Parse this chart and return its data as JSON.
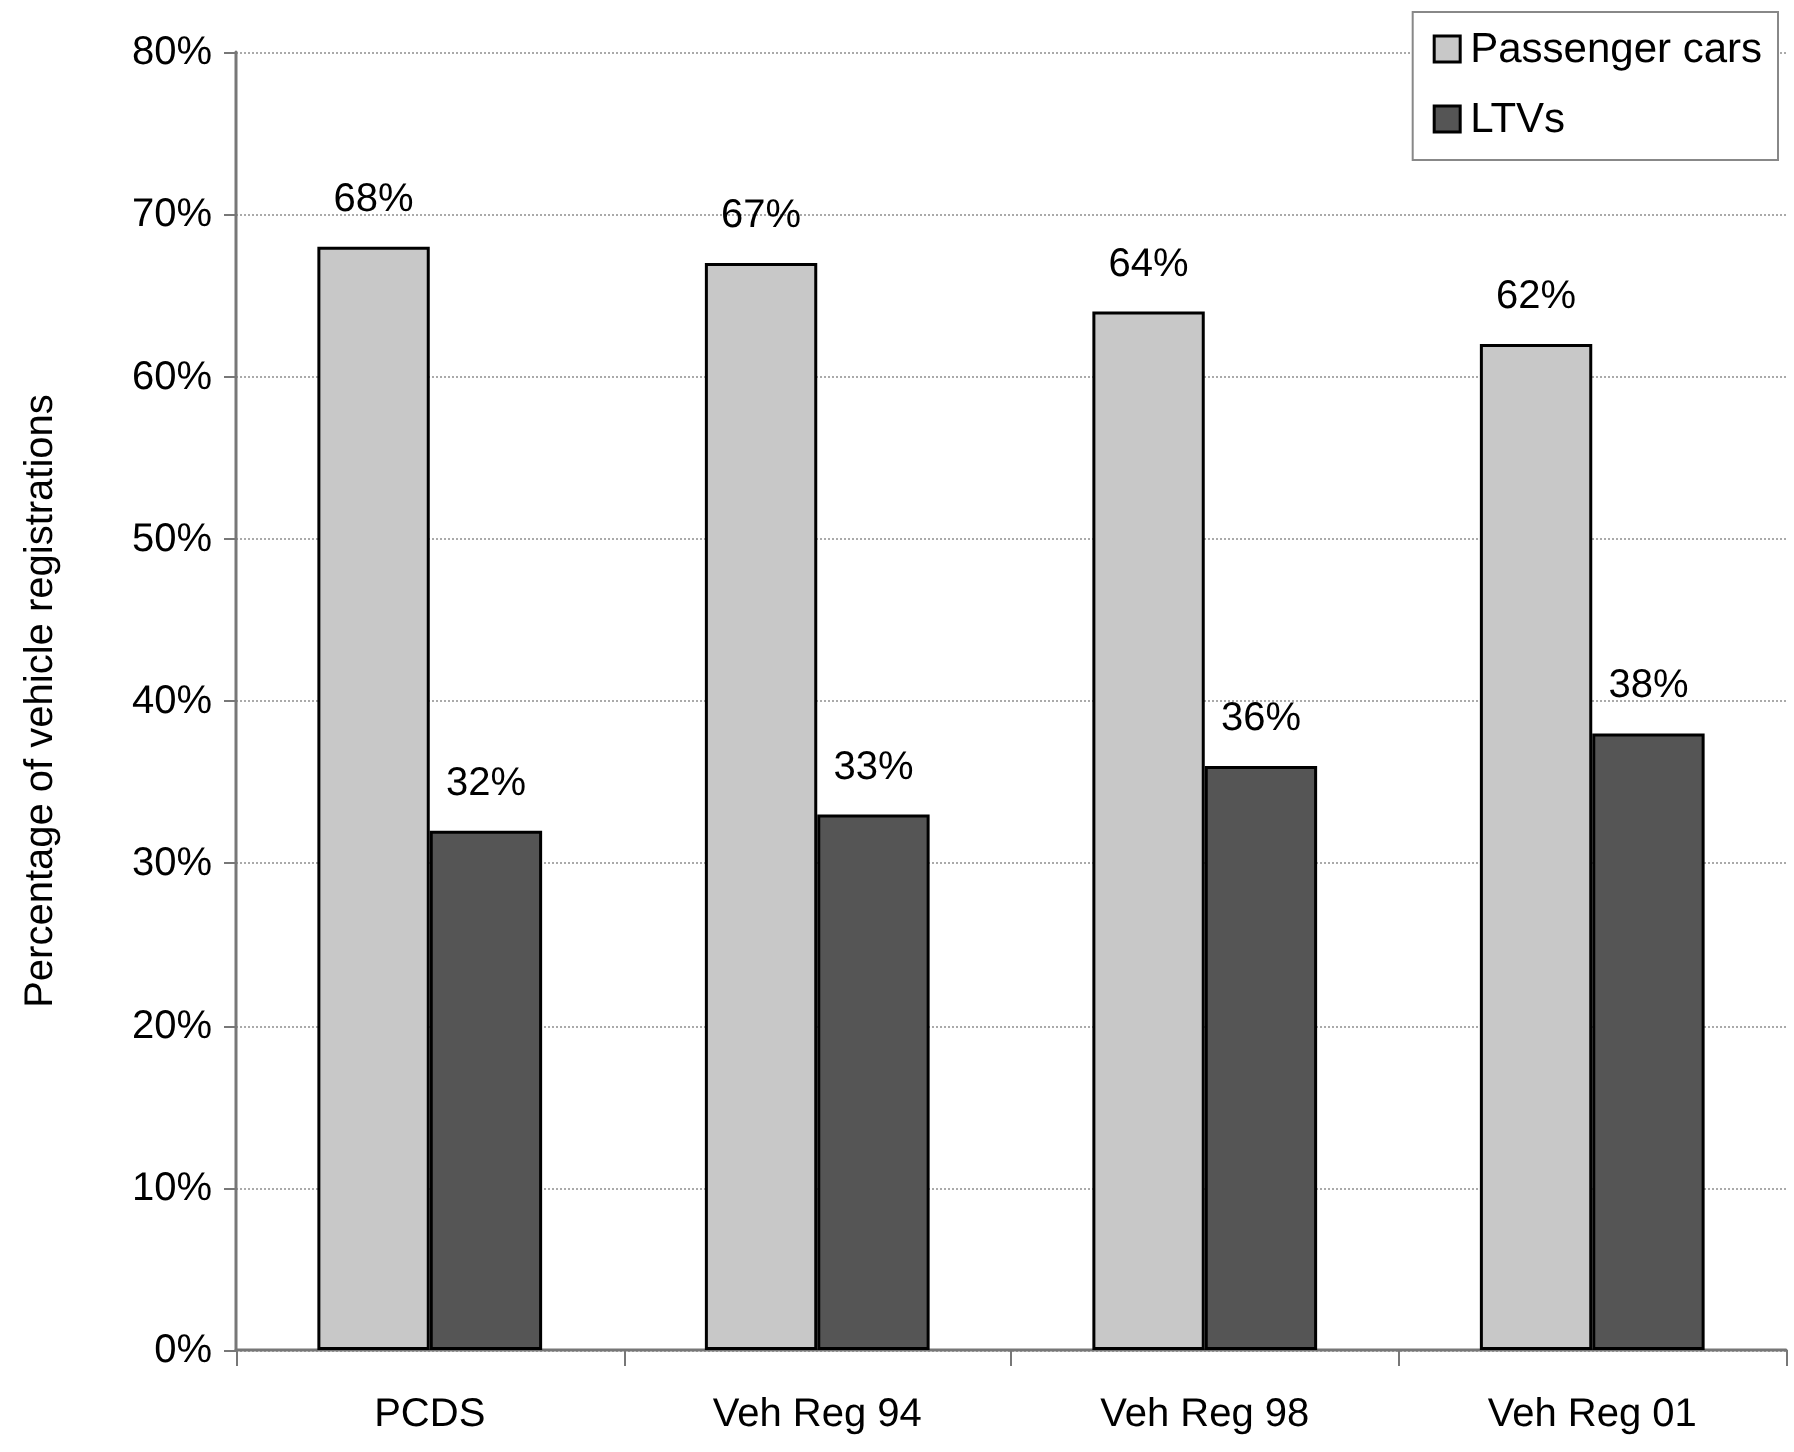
{
  "chart_data": {
    "type": "bar",
    "ylabel": "Percentage of vehicle registrations",
    "categories": [
      "PCDS",
      "Veh Reg 94",
      "Veh Reg 98",
      "Veh Reg 01"
    ],
    "series": [
      {
        "name": "Passenger cars",
        "color": "#c8c8c8",
        "values": [
          68,
          67,
          64,
          62
        ],
        "value_labels": [
          "68%",
          "67%",
          "64%",
          "62%"
        ]
      },
      {
        "name": "LTVs",
        "color": "#555555",
        "values": [
          32,
          33,
          36,
          38
        ],
        "value_labels": [
          "32%",
          "33%",
          "36%",
          "38%"
        ]
      }
    ],
    "ylim": [
      0,
      80
    ],
    "yticks": [
      {
        "value": 0,
        "label": "0%"
      },
      {
        "value": 10,
        "label": "10%"
      },
      {
        "value": 20,
        "label": "20%"
      },
      {
        "value": 30,
        "label": "30%"
      },
      {
        "value": 40,
        "label": "40%"
      },
      {
        "value": 50,
        "label": "50%"
      },
      {
        "value": 60,
        "label": "60%"
      },
      {
        "value": 70,
        "label": "70%"
      },
      {
        "value": 80,
        "label": "80%"
      }
    ],
    "grid": "y",
    "legend": "top right"
  }
}
